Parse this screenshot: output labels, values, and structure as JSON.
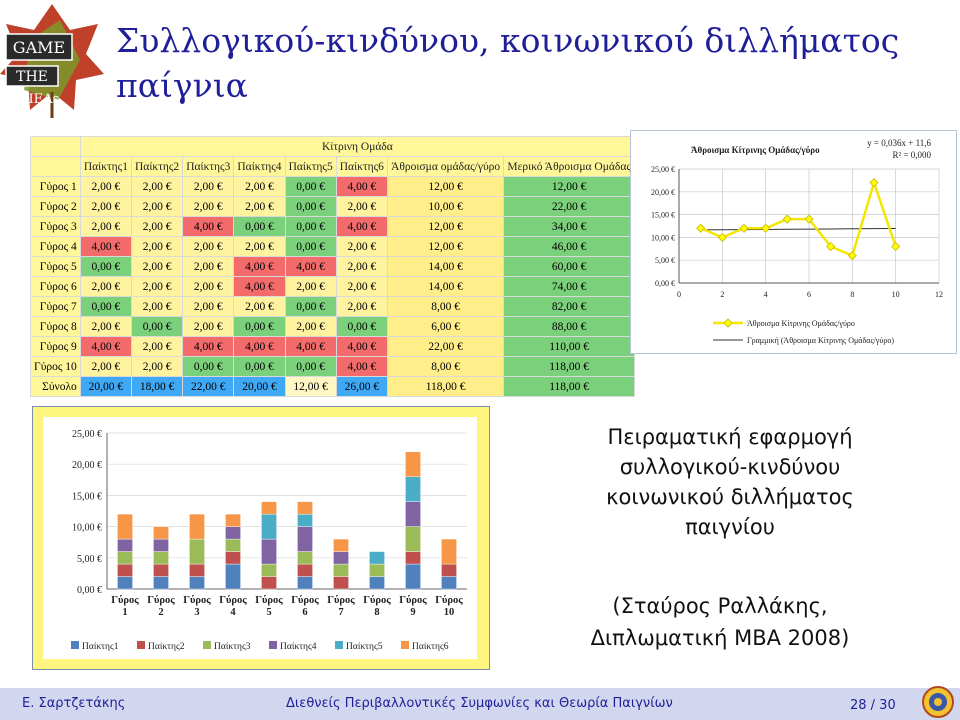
{
  "slide": {
    "title": "Συλλογικού-κινδύνου, κοινωνικού διλλήματος παίγνια",
    "logo_text": [
      "GAME",
      "THE",
      "& IEAs"
    ],
    "caption": [
      "Πειραματική εφαρμογή",
      "συλλογικού-κινδύνου",
      "κοινωνικού διλλήματος",
      "παιγνίου"
    ],
    "citation": [
      "(Σταύρος Ραλλάκης,",
      "Διπλωματική MBA 2008)"
    ]
  },
  "table": {
    "group_header": "Κίτρινη Ομάδα",
    "col_headers": [
      "Παίκτης1",
      "Παίκτης2",
      "Παίκτης3",
      "Παίκτης4",
      "Παίκτης5",
      "Παίκτης6",
      "Άθροισμα ομάδας/γύρο",
      "Μερικό Άθροισμα Ομάδας"
    ],
    "rows": [
      {
        "label": "Γύρος 1",
        "cells": [
          "2,00 €",
          "2,00 €",
          "2,00 €",
          "2,00 €",
          "0,00 €",
          "4,00 €"
        ],
        "colors": [
          "y",
          "y",
          "y",
          "y",
          "g",
          "r"
        ],
        "sum": "12,00 €",
        "partial": "12,00 €"
      },
      {
        "label": "Γύρος 2",
        "cells": [
          "2,00 €",
          "2,00 €",
          "2,00 €",
          "2,00 €",
          "0,00 €",
          "2,00 €"
        ],
        "colors": [
          "y",
          "y",
          "y",
          "y",
          "g",
          "y"
        ],
        "sum": "10,00 €",
        "partial": "22,00 €"
      },
      {
        "label": "Γύρος 3",
        "cells": [
          "2,00 €",
          "2,00 €",
          "4,00 €",
          "0,00 €",
          "0,00 €",
          "4,00 €"
        ],
        "colors": [
          "y",
          "y",
          "r",
          "g",
          "g",
          "r"
        ],
        "sum": "12,00 €",
        "partial": "34,00 €"
      },
      {
        "label": "Γύρος 4",
        "cells": [
          "4,00 €",
          "2,00 €",
          "2,00 €",
          "2,00 €",
          "0,00 €",
          "2,00 €"
        ],
        "colors": [
          "r",
          "y",
          "y",
          "y",
          "g",
          "y"
        ],
        "sum": "12,00 €",
        "partial": "46,00 €"
      },
      {
        "label": "Γύρος 5",
        "cells": [
          "0,00 €",
          "2,00 €",
          "2,00 €",
          "4,00 €",
          "4,00 €",
          "2,00 €"
        ],
        "colors": [
          "g",
          "y",
          "y",
          "r",
          "r",
          "y"
        ],
        "sum": "14,00 €",
        "partial": "60,00 €"
      },
      {
        "label": "Γύρος 6",
        "cells": [
          "2,00 €",
          "2,00 €",
          "2,00 €",
          "4,00 €",
          "2,00 €",
          "2,00 €"
        ],
        "colors": [
          "y",
          "y",
          "y",
          "r",
          "y",
          "y"
        ],
        "sum": "14,00 €",
        "partial": "74,00 €"
      },
      {
        "label": "Γύρος 7",
        "cells": [
          "0,00 €",
          "2,00 €",
          "2,00 €",
          "2,00 €",
          "0,00 €",
          "2,00 €"
        ],
        "colors": [
          "g",
          "y",
          "y",
          "y",
          "g",
          "y"
        ],
        "sum": "8,00 €",
        "partial": "82,00 €"
      },
      {
        "label": "Γύρος 8",
        "cells": [
          "2,00 €",
          "0,00 €",
          "2,00 €",
          "0,00 €",
          "2,00 €",
          "0,00 €"
        ],
        "colors": [
          "y",
          "g",
          "y",
          "g",
          "y",
          "g"
        ],
        "sum": "6,00 €",
        "partial": "88,00 €"
      },
      {
        "label": "Γύρος 9",
        "cells": [
          "4,00 €",
          "2,00 €",
          "4,00 €",
          "4,00 €",
          "4,00 €",
          "4,00 €"
        ],
        "colors": [
          "r",
          "y",
          "r",
          "r",
          "r",
          "r"
        ],
        "sum": "22,00 €",
        "partial": "110,00 €"
      },
      {
        "label": "Γύρος 10",
        "cells": [
          "2,00 €",
          "2,00 €",
          "0,00 €",
          "0,00 €",
          "0,00 €",
          "4,00 €"
        ],
        "colors": [
          "y",
          "y",
          "g",
          "g",
          "g",
          "r"
        ],
        "sum": "8,00 €",
        "partial": "118,00 €"
      }
    ],
    "total_row": {
      "label": "Σύνολο",
      "cells": [
        "20,00 €",
        "18,00 €",
        "22,00 €",
        "20,00 €",
        "12,00 €",
        "26,00 €"
      ],
      "colors": [
        "b",
        "b",
        "b",
        "b",
        "w",
        "b"
      ],
      "sum": "118,00 €",
      "partial": "118,00 €"
    }
  },
  "chart_data": [
    {
      "type": "line",
      "title": "Άθροισμα Κίτρινης Ομάδας/γύρο",
      "equation": [
        "y = 0,036x + 11,6",
        "R² = 0,000"
      ],
      "x": [
        1,
        2,
        3,
        4,
        5,
        6,
        7,
        8,
        9,
        10
      ],
      "series": [
        {
          "name": "Άθροισμα Κίτρινης Ομάδας/γύρο",
          "values": [
            12,
            10,
            12,
            12,
            14,
            14,
            8,
            6,
            22,
            8
          ],
          "color": "#ffff00"
        },
        {
          "name": "Γραμμική (Άθροισμα Κίτρινης Ομάδας/γύρο)",
          "values": [
            11.64,
            11.67,
            11.71,
            11.74,
            11.78,
            11.82,
            11.85,
            11.89,
            11.92,
            11.96
          ],
          "color": "#333333"
        }
      ],
      "xlim": [
        0,
        12
      ],
      "ylim": [
        0,
        25
      ],
      "xticks": [
        "0",
        "2",
        "4",
        "6",
        "8",
        "10",
        "12"
      ],
      "yticks": [
        "0,00 €",
        "5,00 €",
        "10,00 €",
        "15,00 €",
        "20,00 €",
        "25,00 €"
      ],
      "grid": true,
      "legend": "bottom"
    },
    {
      "type": "bar",
      "stacked": true,
      "categories": [
        "Γύρος 1",
        "Γύρος 2",
        "Γύρος 3",
        "Γύρος 4",
        "Γύρος 5",
        "Γύρος 6",
        "Γύρος 7",
        "Γύρος 8",
        "Γύρος 9",
        "Γύρος 10"
      ],
      "series": [
        {
          "name": "Παίκτης1",
          "values": [
            2,
            2,
            2,
            4,
            0,
            2,
            0,
            2,
            4,
            2
          ],
          "color": "#4f81bd"
        },
        {
          "name": "Παίκτης2",
          "values": [
            2,
            2,
            2,
            2,
            2,
            2,
            2,
            0,
            2,
            2
          ],
          "color": "#c0504d"
        },
        {
          "name": "Παίκτης3",
          "values": [
            2,
            2,
            4,
            2,
            2,
            2,
            2,
            2,
            4,
            0
          ],
          "color": "#9bbb59"
        },
        {
          "name": "Παίκτης4",
          "values": [
            2,
            2,
            0,
            2,
            4,
            4,
            2,
            0,
            4,
            0
          ],
          "color": "#8064a2"
        },
        {
          "name": "Παίκτης5",
          "values": [
            0,
            0,
            0,
            0,
            4,
            2,
            0,
            2,
            4,
            0
          ],
          "color": "#4bacc6"
        },
        {
          "name": "Παίκτης6",
          "values": [
            4,
            2,
            4,
            2,
            2,
            2,
            2,
            0,
            4,
            4
          ],
          "color": "#f79646"
        }
      ],
      "ylim": [
        0,
        25
      ],
      "yticks": [
        "0,00 €",
        "5,00 €",
        "10,00 €",
        "15,00 €",
        "20,00 €",
        "25,00 €"
      ],
      "legend": "bottom"
    }
  ],
  "footer": {
    "author": "Ε. Σαρτζετάκης",
    "course": "Διεθνείς Περιβαλλοντικές Συμφωνίες και Θεωρία Παιγνίων",
    "page": "28 / 30"
  }
}
